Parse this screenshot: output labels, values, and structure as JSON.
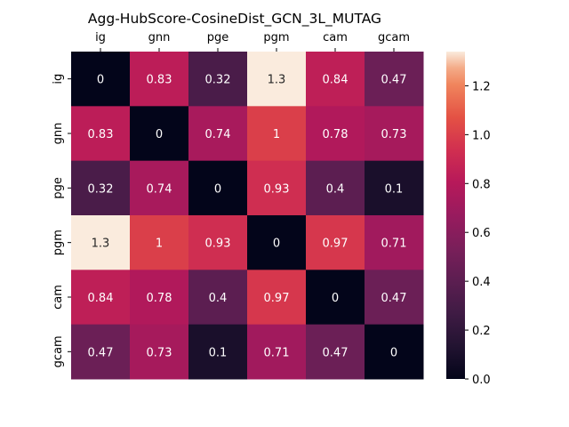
{
  "chart_data": {
    "type": "heatmap",
    "title": "Agg-HubScore-CosineDist_GCN_3L_MUTAG",
    "x_labels": [
      "ig",
      "gnn",
      "pge",
      "pgm",
      "cam",
      "gcam"
    ],
    "y_labels": [
      "ig",
      "gnn",
      "pge",
      "pgm",
      "cam",
      "gcam"
    ],
    "x_axis_position": "top",
    "values": [
      [
        0,
        0.83,
        0.32,
        1.34,
        0.84,
        0.47
      ],
      [
        0.83,
        0,
        0.74,
        1.0,
        0.78,
        0.73
      ],
      [
        0.32,
        0.74,
        0,
        0.93,
        0.4,
        0.1
      ],
      [
        1.34,
        1.0,
        0.93,
        0,
        0.97,
        0.71
      ],
      [
        0.84,
        0.78,
        0.4,
        0.97,
        0,
        0.47
      ],
      [
        0.47,
        0.73,
        0.1,
        0.71,
        0.47,
        0
      ]
    ],
    "annotations": [
      [
        "0",
        "0.83",
        "0.32",
        "1.3",
        "0.84",
        "0.47"
      ],
      [
        "0.83",
        "0",
        "0.74",
        "1",
        "0.78",
        "0.73"
      ],
      [
        "0.32",
        "0.74",
        "0",
        "0.93",
        "0.4",
        "0.1"
      ],
      [
        "1.3",
        "1",
        "0.93",
        "0",
        "0.97",
        "0.71"
      ],
      [
        "0.84",
        "0.78",
        "0.4",
        "0.97",
        "0",
        "0.47"
      ],
      [
        "0.47",
        "0.73",
        "0.1",
        "0.71",
        "0.47",
        "0"
      ]
    ],
    "colorbar": {
      "range": [
        0,
        1.34
      ],
      "ticks": [
        0.0,
        0.2,
        0.4,
        0.6,
        0.8,
        1.0,
        1.2
      ],
      "tick_labels": [
        "0.0",
        "0.2",
        "0.4",
        "0.6",
        "0.8",
        "1.0",
        "1.2"
      ]
    },
    "colormap": "rocket",
    "grid": false
  }
}
